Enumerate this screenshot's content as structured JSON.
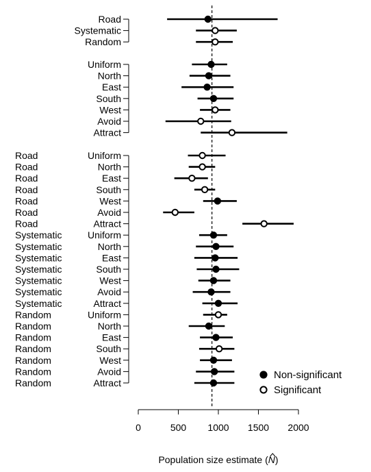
{
  "chart_data": {
    "type": "scatter",
    "subtype": "forest-plot",
    "title": "",
    "xlabel": "Population size estimate (",
    "xlabel_symbol": "N",
    "xlabel_close": ")",
    "xlim": [
      0,
      2000
    ],
    "xticks": [
      0,
      500,
      1000,
      1500,
      2000
    ],
    "tick_labels": [
      "0",
      "500",
      "1000",
      "1500",
      "2000"
    ],
    "reference_line": 920,
    "legend": {
      "position": "bottom-right",
      "entries": [
        {
          "label": "Non-significant",
          "marker": "filled"
        },
        {
          "label": "Significant",
          "marker": "open"
        }
      ]
    },
    "groups": [
      {
        "rows": [
          {
            "label": "Road",
            "estimate": 870,
            "lower": 360,
            "upper": 1740,
            "significant": false
          },
          {
            "label": "Systematic",
            "estimate": 960,
            "lower": 720,
            "upper": 1230,
            "significant": true
          },
          {
            "label": "Random",
            "estimate": 960,
            "lower": 720,
            "upper": 1180,
            "significant": true
          }
        ]
      },
      {
        "rows": [
          {
            "label": "Uniform",
            "estimate": 910,
            "lower": 670,
            "upper": 1110,
            "significant": false
          },
          {
            "label": "North",
            "estimate": 880,
            "lower": 640,
            "upper": 1150,
            "significant": false
          },
          {
            "label": "East",
            "estimate": 860,
            "lower": 540,
            "upper": 1190,
            "significant": false
          },
          {
            "label": "South",
            "estimate": 940,
            "lower": 740,
            "upper": 1190,
            "significant": false
          },
          {
            "label": "West",
            "estimate": 960,
            "lower": 770,
            "upper": 1150,
            "significant": true
          },
          {
            "label": "Avoid",
            "estimate": 780,
            "lower": 340,
            "upper": 1160,
            "significant": true
          },
          {
            "label": "Attract",
            "estimate": 1170,
            "lower": 780,
            "upper": 1860,
            "significant": true
          }
        ]
      },
      {
        "rows": [
          {
            "label1": "Road",
            "label2": "Uniform",
            "estimate": 800,
            "lower": 620,
            "upper": 1090,
            "significant": true
          },
          {
            "label1": "Road",
            "label2": "North",
            "estimate": 800,
            "lower": 630,
            "upper": 960,
            "significant": true
          },
          {
            "label1": "Road",
            "label2": "East",
            "estimate": 670,
            "lower": 450,
            "upper": 870,
            "significant": true
          },
          {
            "label1": "Road",
            "label2": "South",
            "estimate": 830,
            "lower": 700,
            "upper": 960,
            "significant": true
          },
          {
            "label1": "Road",
            "label2": "West",
            "estimate": 990,
            "lower": 810,
            "upper": 1230,
            "significant": false
          },
          {
            "label1": "Road",
            "label2": "Avoid",
            "estimate": 460,
            "lower": 310,
            "upper": 700,
            "significant": true
          },
          {
            "label1": "Road",
            "label2": "Attract",
            "estimate": 1570,
            "lower": 1300,
            "upper": 1940,
            "significant": true
          },
          {
            "label1": "Systematic",
            "label2": "Uniform",
            "estimate": 940,
            "lower": 760,
            "upper": 1110,
            "significant": false
          },
          {
            "label1": "Systematic",
            "label2": "North",
            "estimate": 970,
            "lower": 720,
            "upper": 1190,
            "significant": false
          },
          {
            "label1": "Systematic",
            "label2": "East",
            "estimate": 960,
            "lower": 700,
            "upper": 1240,
            "significant": false
          },
          {
            "label1": "Systematic",
            "label2": "South",
            "estimate": 970,
            "lower": 730,
            "upper": 1260,
            "significant": false
          },
          {
            "label1": "Systematic",
            "label2": "West",
            "estimate": 940,
            "lower": 750,
            "upper": 1150,
            "significant": false
          },
          {
            "label1": "Systematic",
            "label2": "Avoid",
            "estimate": 910,
            "lower": 680,
            "upper": 1150,
            "significant": false
          },
          {
            "label1": "Systematic",
            "label2": "Attract",
            "estimate": 1000,
            "lower": 800,
            "upper": 1240,
            "significant": false
          },
          {
            "label1": "Random",
            "label2": "Uniform",
            "estimate": 1000,
            "lower": 810,
            "upper": 1110,
            "significant": true
          },
          {
            "label1": "Random",
            "label2": "North",
            "estimate": 880,
            "lower": 630,
            "upper": 1080,
            "significant": false
          },
          {
            "label1": "Random",
            "label2": "East",
            "estimate": 970,
            "lower": 770,
            "upper": 1180,
            "significant": false
          },
          {
            "label1": "Random",
            "label2": "South",
            "estimate": 1010,
            "lower": 760,
            "upper": 1200,
            "significant": true
          },
          {
            "label1": "Random",
            "label2": "West",
            "estimate": 940,
            "lower": 770,
            "upper": 1170,
            "significant": false
          },
          {
            "label1": "Random",
            "label2": "Avoid",
            "estimate": 950,
            "lower": 720,
            "upper": 1200,
            "significant": false
          },
          {
            "label1": "Random",
            "label2": "Attract",
            "estimate": 940,
            "lower": 700,
            "upper": 1200,
            "significant": false
          }
        ]
      }
    ]
  }
}
